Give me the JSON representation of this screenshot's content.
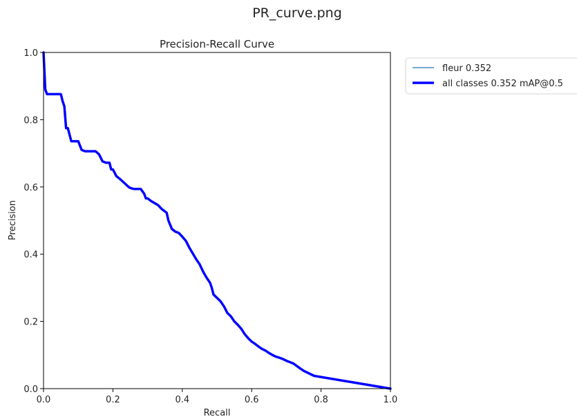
{
  "window_title": "PR_curve.png",
  "chart_data": {
    "type": "line",
    "title": "Precision-Recall Curve",
    "xlabel": "Recall",
    "ylabel": "Precision",
    "xlim": [
      0,
      1
    ],
    "ylim": [
      0,
      1
    ],
    "x_ticks": [
      "0.0",
      "0.2",
      "0.4",
      "0.6",
      "0.8",
      "1.0"
    ],
    "y_ticks": [
      "0.0",
      "0.2",
      "0.4",
      "0.6",
      "0.8",
      "1.0"
    ],
    "grid": false,
    "legend_position": "outside-top-right",
    "series": [
      {
        "name": "fleur 0.352",
        "color": "#1f77b4",
        "style": "thin",
        "x": [
          0.0,
          0.005,
          0.01,
          0.05,
          0.055,
          0.06,
          0.065,
          0.07,
          0.08,
          0.085,
          0.1,
          0.11,
          0.12,
          0.15,
          0.16,
          0.17,
          0.18,
          0.19,
          0.195,
          0.2,
          0.21,
          0.22,
          0.24,
          0.245,
          0.25,
          0.26,
          0.28,
          0.29,
          0.295,
          0.3,
          0.31,
          0.32,
          0.33,
          0.34,
          0.355,
          0.36,
          0.37,
          0.38,
          0.39,
          0.4,
          0.41,
          0.42,
          0.44,
          0.45,
          0.46,
          0.47,
          0.48,
          0.485,
          0.49,
          0.5,
          0.51,
          0.52,
          0.53,
          0.54,
          0.55,
          0.56,
          0.57,
          0.58,
          0.59,
          0.6,
          0.61,
          0.62,
          0.63,
          0.64,
          0.65,
          0.66,
          0.67,
          0.68,
          0.69,
          0.7,
          0.72,
          0.74,
          0.75,
          0.76,
          0.78,
          1.0
        ],
        "y": [
          1.0,
          0.89,
          0.876,
          0.876,
          0.855,
          0.84,
          0.775,
          0.775,
          0.736,
          0.736,
          0.736,
          0.71,
          0.706,
          0.706,
          0.697,
          0.676,
          0.672,
          0.672,
          0.652,
          0.652,
          0.632,
          0.624,
          0.605,
          0.6,
          0.597,
          0.594,
          0.594,
          0.58,
          0.566,
          0.566,
          0.558,
          0.552,
          0.546,
          0.535,
          0.523,
          0.5,
          0.475,
          0.467,
          0.463,
          0.452,
          0.44,
          0.42,
          0.385,
          0.37,
          0.348,
          0.33,
          0.315,
          0.3,
          0.28,
          0.27,
          0.26,
          0.245,
          0.225,
          0.215,
          0.2,
          0.19,
          0.178,
          0.162,
          0.15,
          0.14,
          0.133,
          0.125,
          0.118,
          0.113,
          0.106,
          0.1,
          0.095,
          0.092,
          0.088,
          0.083,
          0.075,
          0.06,
          0.053,
          0.048,
          0.038,
          0.0
        ]
      },
      {
        "name": "all classes 0.352 mAP@0.5",
        "color": "#0000ff",
        "style": "thick",
        "x": [
          0.0,
          0.005,
          0.01,
          0.05,
          0.055,
          0.06,
          0.065,
          0.07,
          0.08,
          0.085,
          0.1,
          0.11,
          0.12,
          0.15,
          0.16,
          0.17,
          0.18,
          0.19,
          0.195,
          0.2,
          0.21,
          0.22,
          0.24,
          0.245,
          0.25,
          0.26,
          0.28,
          0.29,
          0.295,
          0.3,
          0.31,
          0.32,
          0.33,
          0.34,
          0.355,
          0.36,
          0.37,
          0.38,
          0.39,
          0.4,
          0.41,
          0.42,
          0.44,
          0.45,
          0.46,
          0.47,
          0.48,
          0.485,
          0.49,
          0.5,
          0.51,
          0.52,
          0.53,
          0.54,
          0.55,
          0.56,
          0.57,
          0.58,
          0.59,
          0.6,
          0.61,
          0.62,
          0.63,
          0.64,
          0.65,
          0.66,
          0.67,
          0.68,
          0.69,
          0.7,
          0.72,
          0.74,
          0.75,
          0.76,
          0.78,
          1.0
        ],
        "y": [
          1.0,
          0.89,
          0.876,
          0.876,
          0.855,
          0.84,
          0.775,
          0.775,
          0.736,
          0.736,
          0.736,
          0.71,
          0.706,
          0.706,
          0.697,
          0.676,
          0.672,
          0.672,
          0.652,
          0.652,
          0.632,
          0.624,
          0.605,
          0.6,
          0.597,
          0.594,
          0.594,
          0.58,
          0.566,
          0.566,
          0.558,
          0.552,
          0.546,
          0.535,
          0.523,
          0.5,
          0.475,
          0.467,
          0.463,
          0.452,
          0.44,
          0.42,
          0.385,
          0.37,
          0.348,
          0.33,
          0.315,
          0.3,
          0.28,
          0.27,
          0.26,
          0.245,
          0.225,
          0.215,
          0.2,
          0.19,
          0.178,
          0.162,
          0.15,
          0.14,
          0.133,
          0.125,
          0.118,
          0.113,
          0.106,
          0.1,
          0.095,
          0.092,
          0.088,
          0.083,
          0.075,
          0.06,
          0.053,
          0.048,
          0.038,
          0.0
        ]
      }
    ]
  }
}
